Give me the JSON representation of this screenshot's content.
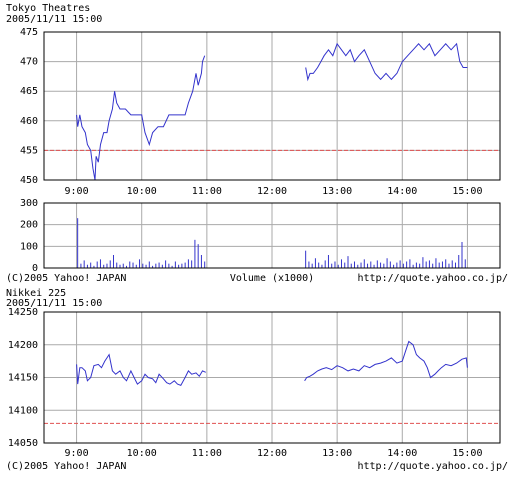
{
  "chart_data": [
    {
      "type": "line",
      "title": "Tokyo  Theatres",
      "subtitle": "2005/11/11 15:00",
      "grid": true,
      "xlim": [
        510,
        930
      ],
      "ylim": [
        450,
        475
      ],
      "xticks": [
        {
          "value": 540,
          "label": "9:00"
        },
        {
          "value": 600,
          "label": "10:00"
        },
        {
          "value": 660,
          "label": "11:00"
        },
        {
          "value": 720,
          "label": "12:00"
        },
        {
          "value": 780,
          "label": "13:00"
        },
        {
          "value": 840,
          "label": "14:00"
        },
        {
          "value": 900,
          "label": "15:00"
        }
      ],
      "yticks": [
        450,
        455,
        460,
        465,
        470,
        475
      ],
      "reference_line": {
        "value": 455,
        "color": "#e05050"
      },
      "x": [
        540,
        541,
        543,
        545,
        548,
        550,
        553,
        555,
        557,
        558,
        560,
        562,
        565,
        568,
        570,
        573,
        575,
        577,
        580,
        585,
        590,
        600,
        603,
        607,
        610,
        615,
        620,
        625,
        630,
        640,
        643,
        647,
        650,
        652,
        655,
        656,
        658,
        700,
        751,
        753,
        755,
        758,
        762,
        765,
        768,
        772,
        776,
        780,
        784,
        788,
        792,
        796,
        800,
        805,
        810,
        815,
        820,
        825,
        830,
        835,
        840,
        845,
        850,
        855,
        860,
        865,
        870,
        875,
        880,
        885,
        890,
        893,
        896,
        900
      ],
      "series": [
        {
          "color": "#3333cc",
          "values": [
            461,
            459,
            461,
            459,
            458,
            456,
            455,
            452,
            450,
            454,
            453,
            456,
            458,
            458,
            460,
            462,
            465,
            463,
            462,
            462,
            461,
            461,
            458,
            456,
            458,
            459,
            459,
            461,
            461,
            461,
            463,
            465,
            468,
            466,
            468,
            470,
            471,
            null,
            469,
            467,
            468,
            468,
            469,
            470,
            471,
            472,
            471,
            473,
            472,
            471,
            472,
            470,
            471,
            472,
            470,
            468,
            467,
            468,
            467,
            468,
            470,
            471,
            472,
            473,
            472,
            473,
            471,
            472,
            473,
            472,
            473,
            470,
            469,
            469
          ]
        }
      ]
    },
    {
      "type": "bar",
      "xlabel": "Volume (x1000)",
      "copyright": "(C)2005 Yahoo! JAPAN",
      "source": "http://quote.yahoo.co.jp/",
      "grid": true,
      "xlim": [
        510,
        930
      ],
      "ylim": [
        0,
        300
      ],
      "xticks": [
        540,
        600,
        660,
        720,
        780,
        840,
        900
      ],
      "yticks": [
        0,
        100,
        200,
        300
      ],
      "color": "#3333cc",
      "x": [
        541,
        544,
        547,
        550,
        553,
        556,
        559,
        562,
        565,
        568,
        571,
        574,
        577,
        580,
        583,
        586,
        589,
        592,
        595,
        598,
        601,
        604,
        607,
        610,
        613,
        616,
        619,
        622,
        625,
        628,
        631,
        634,
        637,
        640,
        643,
        646,
        649,
        652,
        655,
        658,
        751,
        754,
        757,
        760,
        763,
        766,
        769,
        772,
        775,
        778,
        781,
        784,
        787,
        790,
        793,
        796,
        799,
        802,
        805,
        808,
        811,
        814,
        817,
        820,
        823,
        826,
        829,
        832,
        835,
        838,
        841,
        844,
        847,
        850,
        853,
        856,
        859,
        862,
        865,
        868,
        871,
        874,
        877,
        880,
        883,
        886,
        889,
        892,
        895,
        898
      ],
      "values": [
        230,
        20,
        35,
        15,
        25,
        10,
        30,
        40,
        15,
        20,
        35,
        60,
        25,
        15,
        20,
        10,
        30,
        25,
        15,
        40,
        20,
        15,
        30,
        10,
        20,
        25,
        15,
        35,
        20,
        10,
        30,
        15,
        20,
        25,
        40,
        35,
        130,
        110,
        60,
        30,
        80,
        30,
        20,
        45,
        25,
        15,
        35,
        60,
        20,
        30,
        15,
        40,
        25,
        55,
        20,
        30,
        15,
        25,
        40,
        20,
        30,
        15,
        35,
        25,
        20,
        45,
        30,
        15,
        25,
        35,
        20,
        30,
        40,
        15,
        25,
        20,
        50,
        30,
        35,
        20,
        45,
        25,
        30,
        40,
        20,
        35,
        25,
        60,
        120,
        40
      ]
    },
    {
      "type": "line",
      "title": "Nikkei 225",
      "subtitle": "2005/11/11 15:00",
      "copyright": "(C)2005 Yahoo! JAPAN",
      "source": "http://quote.yahoo.co.jp/",
      "grid": true,
      "xlim": [
        510,
        930
      ],
      "ylim": [
        14050,
        14250
      ],
      "xticks": [
        {
          "value": 540,
          "label": "9:00"
        },
        {
          "value": 600,
          "label": "10:00"
        },
        {
          "value": 660,
          "label": "11:00"
        },
        {
          "value": 720,
          "label": "12:00"
        },
        {
          "value": 780,
          "label": "13:00"
        },
        {
          "value": 840,
          "label": "14:00"
        },
        {
          "value": 900,
          "label": "15:00"
        }
      ],
      "yticks": [
        14050,
        14100,
        14150,
        14200,
        14250
      ],
      "reference_line": {
        "value": 14080,
        "color": "#e05050"
      },
      "x": [
        540,
        541,
        543,
        545,
        548,
        550,
        553,
        556,
        560,
        563,
        566,
        570,
        573,
        576,
        580,
        583,
        586,
        590,
        593,
        596,
        600,
        603,
        606,
        610,
        613,
        616,
        620,
        623,
        626,
        630,
        633,
        636,
        640,
        643,
        646,
        650,
        653,
        656,
        659,
        700,
        750,
        752,
        755,
        758,
        762,
        766,
        770,
        775,
        780,
        785,
        790,
        795,
        800,
        805,
        810,
        815,
        820,
        825,
        830,
        835,
        840,
        843,
        846,
        850,
        853,
        856,
        860,
        863,
        866,
        870,
        873,
        876,
        880,
        885,
        890,
        895,
        899,
        900
      ],
      "series": [
        {
          "color": "#3333cc",
          "values": [
            14170,
            14140,
            14165,
            14165,
            14160,
            14145,
            14150,
            14168,
            14170,
            14165,
            14175,
            14185,
            14160,
            14155,
            14160,
            14150,
            14145,
            14160,
            14150,
            14140,
            14145,
            14155,
            14150,
            14148,
            14142,
            14155,
            14148,
            14142,
            14140,
            14145,
            14140,
            14138,
            14150,
            14160,
            14155,
            14157,
            14152,
            14160,
            14158,
            null,
            14145,
            14150,
            14152,
            14155,
            14160,
            14163,
            14165,
            14162,
            14168,
            14165,
            14160,
            14163,
            14160,
            14168,
            14165,
            14170,
            14172,
            14175,
            14180,
            14172,
            14175,
            14190,
            14205,
            14200,
            14185,
            14180,
            14175,
            14165,
            14150,
            14155,
            14160,
            14165,
            14170,
            14168,
            14172,
            14178,
            14180,
            14165
          ]
        }
      ]
    }
  ]
}
